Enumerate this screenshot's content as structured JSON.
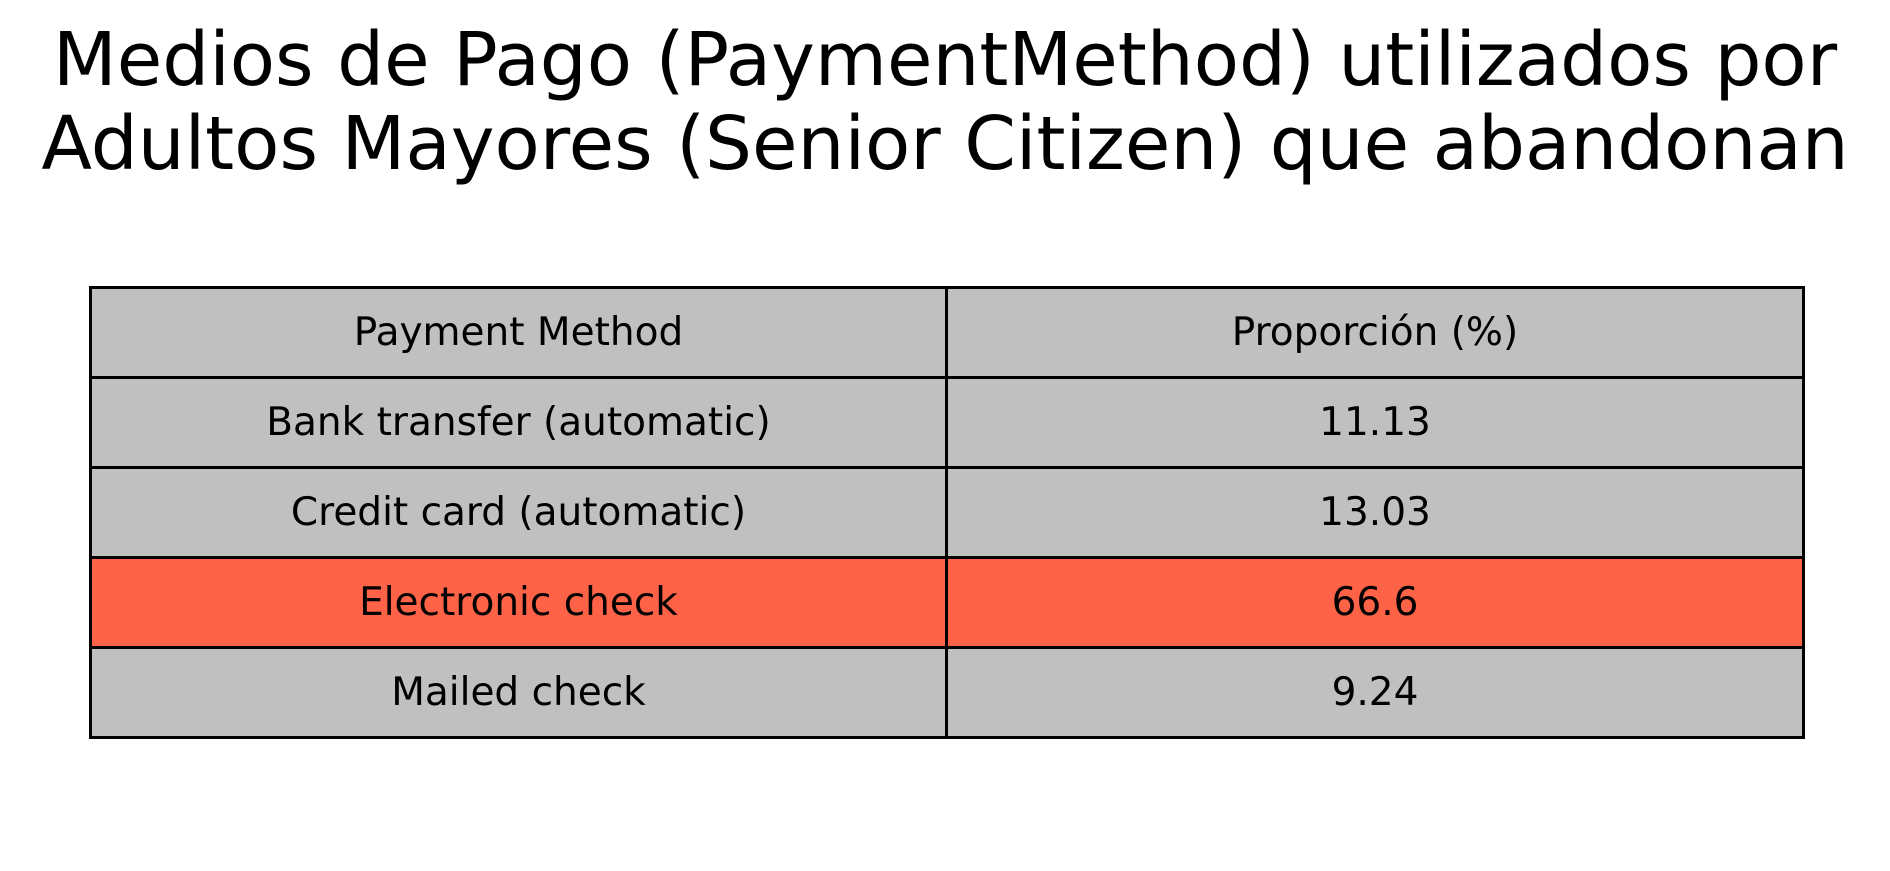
{
  "chart_data": {
    "type": "table",
    "title": "Medios de Pago (PaymentMethod) utilizados por\nAdultos Mayores (Senior Citizen) que abandonan",
    "columns": [
      "Payment Method",
      "Proporción (%)"
    ],
    "rows": [
      {
        "method": "Bank transfer (automatic)",
        "proportion": "11.13",
        "highlight": false
      },
      {
        "method": "Credit card (automatic)",
        "proportion": "13.03",
        "highlight": false
      },
      {
        "method": "Electronic check",
        "proportion": "66.6",
        "highlight": true
      },
      {
        "method": "Mailed check",
        "proportion": "9.24",
        "highlight": false
      }
    ],
    "colors": {
      "cell": "#c0c0c0",
      "highlight": "#ff6347",
      "border": "#000000"
    }
  }
}
